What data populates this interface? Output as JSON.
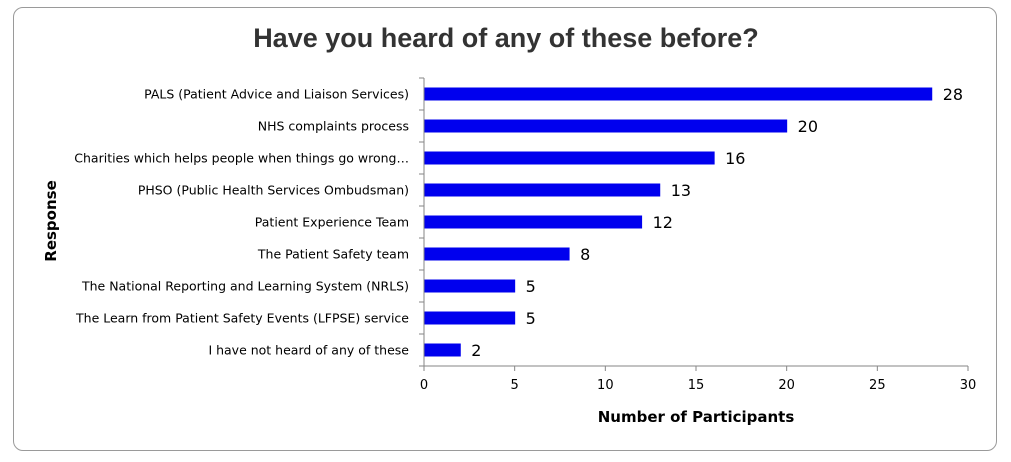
{
  "chart_data": {
    "type": "bar",
    "orientation": "horizontal",
    "title": "Have you heard of any of these before?",
    "xlabel": "Number of Participants",
    "ylabel": "Response",
    "xlim": [
      0,
      30
    ],
    "xticks": [
      0,
      5,
      10,
      15,
      20,
      25,
      30
    ],
    "grid": false,
    "bar_color": "#0000ee",
    "categories": [
      "PALS (Patient Advice and Liaison Services)",
      "NHS complaints process",
      "Charities which helps people when things go wrong…",
      "PHSO (Public Health Services Ombudsman)",
      "Patient Experience Team",
      "The Patient Safety team",
      "The National Reporting and Learning System (NRLS)",
      "The Learn from Patient Safety Events (LFPSE) service",
      "I have not heard of any of these"
    ],
    "values": [
      28,
      20,
      16,
      13,
      12,
      8,
      5,
      5,
      2
    ]
  }
}
